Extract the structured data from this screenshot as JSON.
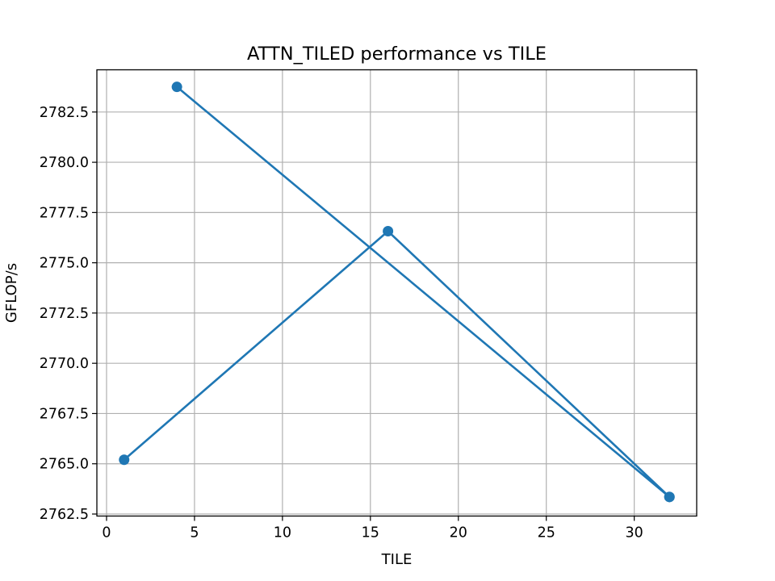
{
  "chart_data": {
    "type": "line",
    "title": "ATTN_TILED performance vs TILE",
    "xlabel": "TILE",
    "ylabel": "GFLOP/s",
    "xlim": [
      -0.55,
      33.55
    ],
    "ylim": [
      2762.4,
      2784.6
    ],
    "x_ticks": [
      0,
      5,
      10,
      15,
      20,
      25,
      30
    ],
    "y_ticks": [
      2762.5,
      2765.0,
      2767.5,
      2770.0,
      2772.5,
      2775.0,
      2777.5,
      2780.0,
      2782.5
    ],
    "x_tick_labels": [
      "0",
      "5",
      "10",
      "15",
      "20",
      "25",
      "30"
    ],
    "y_tick_labels": [
      "2762.5",
      "2765.0",
      "2767.5",
      "2770.0",
      "2772.5",
      "2775.0",
      "2777.5",
      "2780.0",
      "2782.5"
    ],
    "grid": true,
    "series": [
      {
        "color": "#1f77b4",
        "marker": "circle",
        "x": [
          1,
          16,
          32,
          4,
          32
        ],
        "y": [
          2765.2,
          2776.57,
          2763.35,
          2783.75,
          2763.35
        ]
      }
    ]
  }
}
